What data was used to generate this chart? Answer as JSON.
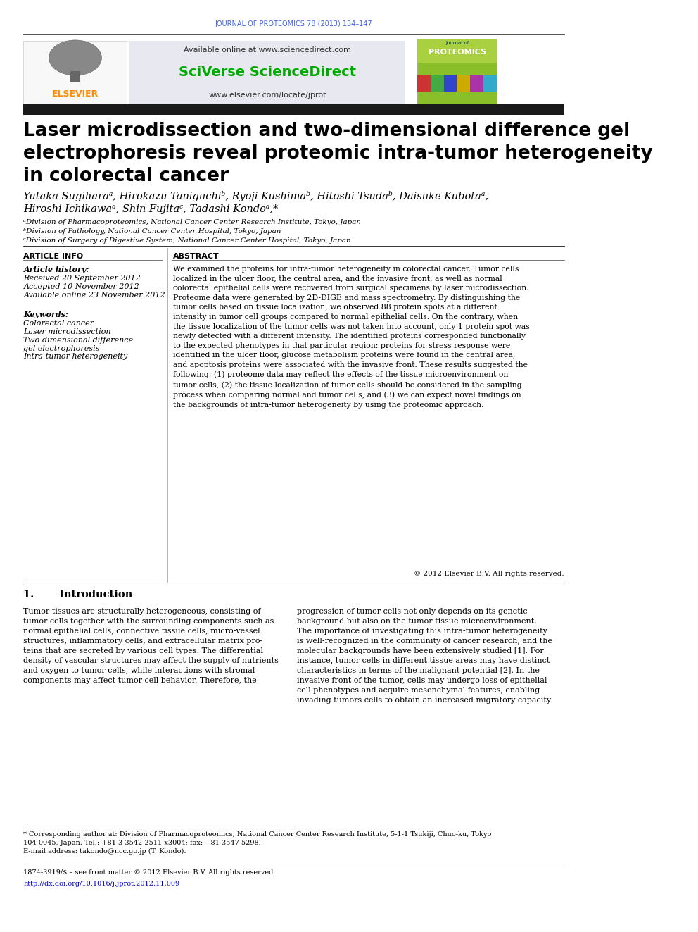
{
  "journal_header": "JOURNAL OF PROTEOMICS 78 (2013) 134–147",
  "journal_header_color": "#4169E1",
  "available_online": "Available online at www.sciencedirect.com",
  "sciverse_text": "SciVerse ScienceDirect",
  "sciverse_color": "#00AA00",
  "elsevier_url": "www.elsevier.com/locate/jprot",
  "elsevier_orange": "#FF8C00",
  "title_line1": "Laser microdissection and two-dimensional difference gel",
  "title_line2": "electrophoresis reveal proteomic intra-tumor heterogeneity",
  "title_line3": "in colorectal cancer",
  "authors_line1": "Yutaka Sugiharaᵃ, Hirokazu Taniguchiᵇ, Ryoji Kushimaᵇ, Hitoshi Tsudaᵇ, Daisuke Kubotaᵃ,",
  "authors_line2": "Hiroshi Ichikawaᵃ, Shin Fujitaᶜ, Tadashi Kondoᵃ,*",
  "affil_a": "ᵃDivision of Pharmacoproteomics, National Cancer Center Research Institute, Tokyo, Japan",
  "affil_b": "ᵇDivision of Pathology, National Cancer Center Hospital, Tokyo, Japan",
  "affil_c": "ᶜDivision of Surgery of Digestive System, National Cancer Center Hospital, Tokyo, Japan",
  "article_info_title": "ARTICLE INFO",
  "article_history_title": "Article history:",
  "received": "Received 20 September 2012",
  "accepted": "Accepted 10 November 2012",
  "available_online2": "Available online 23 November 2012",
  "keywords_title": "Keywords:",
  "kw1": "Colorectal cancer",
  "kw2": "Laser microdissection",
  "kw3": "Two-dimensional difference",
  "kw4": "gel electrophoresis",
  "kw5": "Intra-tumor heterogeneity",
  "abstract_title": "ABSTRACT",
  "abstract_text": "We examined the proteins for intra-tumor heterogeneity in colorectal cancer. Tumor cells\nlocalized in the ulcer floor, the central area, and the invasive front, as well as normal\ncolorectal epithelial cells were recovered from surgical specimens by laser microdissection.\nProteome data were generated by 2D-DIGE and mass spectrometry. By distinguishing the\ntumor cells based on tissue localization, we observed 88 protein spots at a different\nintensity in tumor cell groups compared to normal epithelial cells. On the contrary, when\nthe tissue localization of the tumor cells was not taken into account, only 1 protein spot was\nnewly detected with a different intensity. The identified proteins corresponded functionally\nto the expected phenotypes in that particular region: proteins for stress response were\nidentified in the ulcer floor, glucose metabolism proteins were found in the central area,\nand apoptosis proteins were associated with the invasive front. These results suggested the\nfollowing: (1) proteome data may reflect the effects of the tissue microenvironment on\ntumor cells, (2) the tissue localization of tumor cells should be considered in the sampling\nprocess when comparing normal and tumor cells, and (3) we can expect novel findings on\nthe backgrounds of intra-tumor heterogeneity by using the proteomic approach.",
  "copyright": "© 2012 Elsevier B.V. All rights reserved.",
  "intro_title": "1.       Introduction",
  "intro_text1": "Tumor tissues are structurally heterogeneous, consisting of\ntumor cells together with the surrounding components such as\nnormal epithelial cells, connective tissue cells, micro-vessel\nstructures, inflammatory cells, and extracellular matrix pro-\nteins that are secreted by various cell types. The differential\ndensity of vascular structures may affect the supply of nutrients\nand oxygen to tumor cells, while interactions with stromal\ncomponents may affect tumor cell behavior. Therefore, the",
  "intro_text2": "progression of tumor cells not only depends on its genetic\nbackground but also on the tumor tissue microenvironment.\nThe importance of investigating this intra-tumor heterogeneity\nis well-recognized in the community of cancer research, and the\nmolecular backgrounds have been extensively studied [1]. For\ninstance, tumor cells in different tissue areas may have distinct\ncharacteristics in terms of the malignant potential [2]. In the\ninvasive front of the tumor, cells may undergo loss of epithelial\ncell phenotypes and acquire mesenchymal features, enabling\ninvading tumors cells to obtain an increased migratory capacity",
  "footnote_star": "* Corresponding author at: Division of Pharmacoproteomics, National Cancer Center Research Institute, 5-1-1 Tsukiji, Chuo-ku, Tokyo\n104-0045, Japan. Tel.: +81 3 3542 2511 x3004; fax: +81 3547 5298.",
  "footnote_email": "E-mail address: takondo@ncc.go.jp (T. Kondo).",
  "footer_line1": "1874-3919/$ – see front matter © 2012 Elsevier B.V. All rights reserved.",
  "footer_doi": "http://dx.doi.org/10.1016/j.jprot.2012.11.009",
  "footer_doi_color": "#0000CC",
  "bg_color": "#FFFFFF",
  "header_box_color": "#E8E8F0",
  "black_bar_color": "#1A1A1A",
  "divider_color": "#333333"
}
